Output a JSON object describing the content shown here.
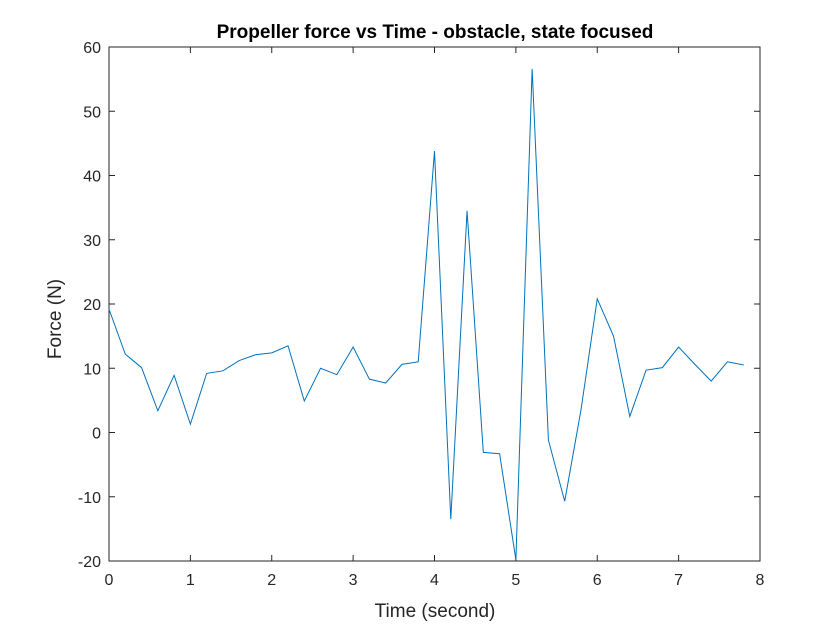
{
  "chart_data": {
    "type": "line",
    "title": "Propeller force vs Time - obstacle, state focused",
    "xlabel": "Time (second)",
    "ylabel": "Force (N)",
    "xlim": [
      0,
      8
    ],
    "ylim": [
      -20,
      60
    ],
    "xticks": [
      "0",
      "1",
      "2",
      "3",
      "4",
      "5",
      "6",
      "7",
      "8"
    ],
    "yticks": [
      "-20",
      "-10",
      "0",
      "10",
      "20",
      "30",
      "40",
      "50",
      "60"
    ],
    "grid": false,
    "legend": false,
    "line_color": "#0072BD",
    "series": [
      {
        "x": [
          0,
          0.2,
          0.4,
          0.6,
          0.8,
          1.0,
          1.2,
          1.4,
          1.6,
          1.8,
          2.0,
          2.2,
          2.4,
          2.6,
          2.8,
          3.0,
          3.2,
          3.4,
          3.6,
          3.8,
          4.0,
          4.2,
          4.4,
          4.6,
          4.8,
          5.0,
          5.2,
          5.4,
          5.6,
          5.8,
          6.0,
          6.2,
          6.4,
          6.6,
          6.8,
          7.0,
          7.2,
          7.4,
          7.6,
          7.8
        ],
        "values": [
          19.2,
          12.2,
          10.1,
          3.4,
          8.9,
          1.3,
          9.2,
          9.6,
          11.2,
          12.1,
          12.4,
          13.5,
          4.9,
          10.0,
          9.0,
          13.3,
          8.3,
          7.7,
          10.6,
          11.0,
          43.8,
          -13.5,
          34.5,
          -3.1,
          -3.3,
          -19.8,
          56.6,
          -1.2,
          -10.7,
          3.5,
          20.8,
          15.0,
          2.5,
          9.7,
          10.1,
          13.3,
          10.6,
          8.0,
          11.0,
          10.5
        ]
      }
    ]
  }
}
